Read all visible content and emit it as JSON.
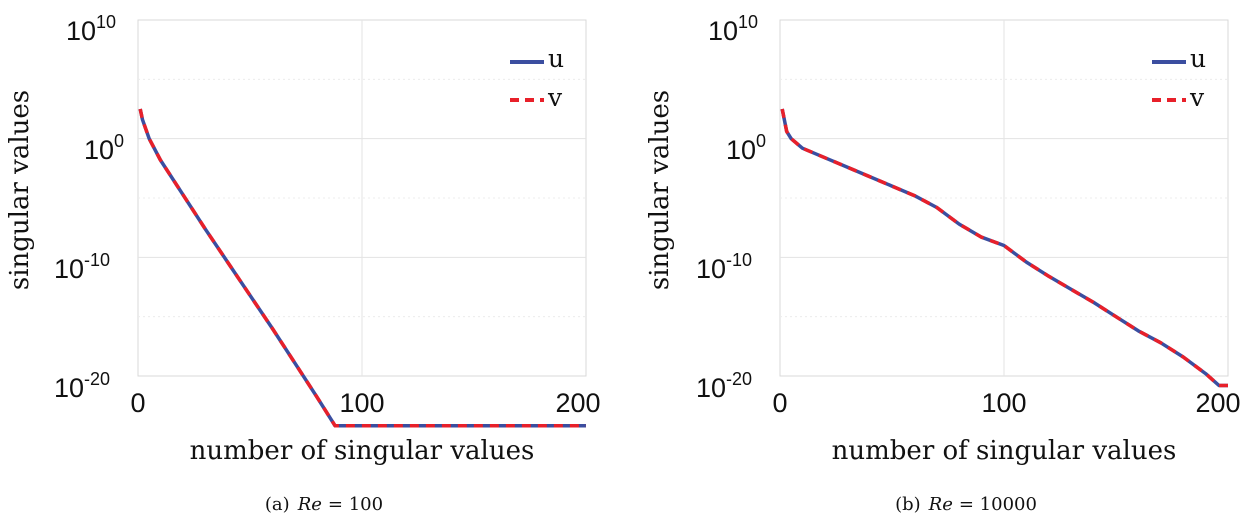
{
  "chart_data": [
    {
      "type": "line",
      "caption_label": "(a)",
      "caption_var": "Re",
      "caption_value": "= 100",
      "xlabel": "number of singular values",
      "ylabel": "singular values",
      "xlim": [
        0,
        200
      ],
      "ylim_log10": [
        -20,
        10
      ],
      "xticks": [
        "0",
        "100",
        "200"
      ],
      "yticks": [
        {
          "base": "10",
          "exp": "10"
        },
        {
          "base": "10",
          "exp": "0"
        },
        {
          "base": "10",
          "exp": "-10"
        },
        {
          "base": "10",
          "exp": "-20"
        }
      ],
      "grid": true,
      "legend_position": "top-right",
      "series": [
        {
          "name": "u",
          "color": "#3b4ea0",
          "style": "solid",
          "x": [
            1,
            2,
            5,
            10,
            20,
            30,
            40,
            50,
            60,
            70,
            80,
            88,
            100,
            150,
            200
          ],
          "log10_y": [
            2.5,
            1.6,
            0.0,
            -1.8,
            -4.7,
            -7.6,
            -10.4,
            -13.2,
            -16.0,
            -18.9,
            -21.8,
            -24.2,
            -24.2,
            -24.2,
            -24.2
          ]
        },
        {
          "name": "v",
          "color": "#e8202a",
          "style": "dashed",
          "x": [
            1,
            2,
            5,
            10,
            20,
            30,
            40,
            50,
            60,
            70,
            80,
            88,
            100,
            150,
            200
          ],
          "log10_y": [
            2.5,
            1.6,
            0.0,
            -1.8,
            -4.7,
            -7.6,
            -10.4,
            -13.2,
            -16.0,
            -18.9,
            -21.8,
            -24.2,
            -24.2,
            -24.2,
            -24.2
          ]
        }
      ]
    },
    {
      "type": "line",
      "caption_label": "(b)",
      "caption_var": "Re",
      "caption_value": "= 10000",
      "xlabel": "number of singular values",
      "ylabel": "singular values",
      "xlim": [
        0,
        200
      ],
      "ylim_log10": [
        -20,
        10
      ],
      "xticks": [
        "0",
        "100",
        "200"
      ],
      "yticks": [
        {
          "base": "10",
          "exp": "10"
        },
        {
          "base": "10",
          "exp": "0"
        },
        {
          "base": "10",
          "exp": "-10"
        },
        {
          "base": "10",
          "exp": "-20"
        }
      ],
      "grid": true,
      "legend_position": "top-right",
      "series": [
        {
          "name": "u",
          "color": "#3b4ea0",
          "style": "solid",
          "x": [
            1,
            3,
            5,
            10,
            20,
            30,
            40,
            50,
            60,
            70,
            80,
            90,
            100,
            110,
            120,
            130,
            140,
            150,
            160,
            170,
            180,
            190,
            196,
            200
          ],
          "log10_y": [
            2.5,
            0.6,
            0.0,
            -0.8,
            -1.6,
            -2.4,
            -3.2,
            -4.0,
            -4.8,
            -5.8,
            -7.2,
            -8.3,
            -9.0,
            -10.4,
            -11.6,
            -12.7,
            -13.8,
            -15.0,
            -16.2,
            -17.2,
            -18.4,
            -19.8,
            -20.8,
            -20.8
          ]
        },
        {
          "name": "v",
          "color": "#e8202a",
          "style": "dashed",
          "x": [
            1,
            3,
            5,
            10,
            20,
            30,
            40,
            50,
            60,
            70,
            80,
            90,
            100,
            110,
            120,
            130,
            140,
            150,
            160,
            170,
            180,
            190,
            196,
            200
          ],
          "log10_y": [
            2.5,
            0.6,
            0.0,
            -0.8,
            -1.6,
            -2.4,
            -3.2,
            -4.0,
            -4.8,
            -5.8,
            -7.2,
            -8.3,
            -9.0,
            -10.4,
            -11.6,
            -12.7,
            -13.8,
            -15.0,
            -16.2,
            -17.2,
            -18.4,
            -19.8,
            -20.8,
            -20.8
          ]
        }
      ]
    }
  ]
}
